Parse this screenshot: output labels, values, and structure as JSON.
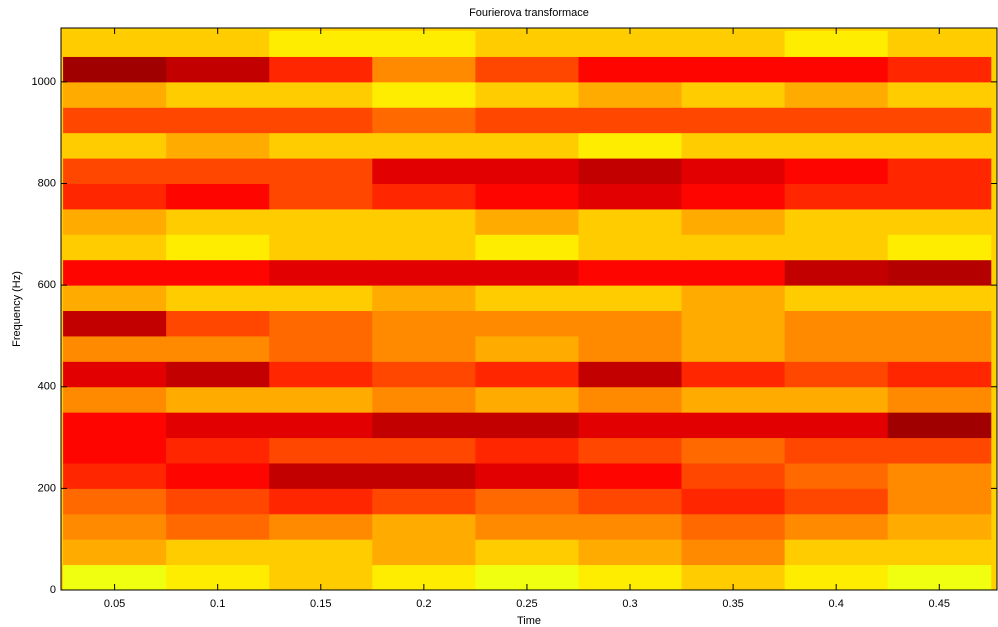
{
  "chart_data": {
    "type": "heatmap",
    "title": "Fourierova transformace",
    "xlabel": "Time",
    "ylabel": "Frequency (Hz)",
    "x": [
      0.05,
      0.1,
      0.15,
      0.2,
      0.25,
      0.3,
      0.35,
      0.4,
      0.45
    ],
    "y": [
      25,
      75,
      125,
      175,
      225,
      275,
      325,
      375,
      425,
      475,
      525,
      575,
      625,
      675,
      725,
      775,
      825,
      875,
      925,
      975,
      1025,
      1075
    ],
    "z": [
      [
        0.4,
        0.45,
        0.5,
        0.45,
        0.4,
        0.45,
        0.5,
        0.45,
        0.4
      ],
      [
        0.55,
        0.5,
        0.5,
        0.55,
        0.5,
        0.55,
        0.6,
        0.5,
        0.5
      ],
      [
        0.6,
        0.65,
        0.6,
        0.55,
        0.6,
        0.6,
        0.65,
        0.6,
        0.55
      ],
      [
        0.65,
        0.7,
        0.75,
        0.7,
        0.65,
        0.7,
        0.75,
        0.7,
        0.6
      ],
      [
        0.75,
        0.8,
        0.9,
        0.9,
        0.85,
        0.8,
        0.7,
        0.65,
        0.6
      ],
      [
        0.8,
        0.75,
        0.7,
        0.7,
        0.75,
        0.7,
        0.65,
        0.7,
        0.7
      ],
      [
        0.8,
        0.85,
        0.85,
        0.9,
        0.9,
        0.85,
        0.85,
        0.85,
        0.95
      ],
      [
        0.6,
        0.55,
        0.55,
        0.6,
        0.55,
        0.6,
        0.55,
        0.55,
        0.6
      ],
      [
        0.85,
        0.9,
        0.75,
        0.7,
        0.75,
        0.9,
        0.75,
        0.7,
        0.75
      ],
      [
        0.6,
        0.6,
        0.65,
        0.6,
        0.55,
        0.6,
        0.55,
        0.6,
        0.6
      ],
      [
        0.9,
        0.7,
        0.65,
        0.6,
        0.6,
        0.6,
        0.55,
        0.6,
        0.6
      ],
      [
        0.55,
        0.5,
        0.5,
        0.55,
        0.5,
        0.5,
        0.55,
        0.5,
        0.5
      ],
      [
        0.8,
        0.8,
        0.85,
        0.85,
        0.85,
        0.8,
        0.8,
        0.9,
        0.92
      ],
      [
        0.5,
        0.45,
        0.5,
        0.5,
        0.45,
        0.5,
        0.5,
        0.5,
        0.45
      ],
      [
        0.55,
        0.5,
        0.5,
        0.5,
        0.55,
        0.5,
        0.55,
        0.5,
        0.5
      ],
      [
        0.75,
        0.8,
        0.7,
        0.75,
        0.8,
        0.85,
        0.8,
        0.75,
        0.75
      ],
      [
        0.7,
        0.7,
        0.7,
        0.85,
        0.85,
        0.9,
        0.85,
        0.8,
        0.75
      ],
      [
        0.5,
        0.55,
        0.5,
        0.5,
        0.5,
        0.45,
        0.5,
        0.5,
        0.5
      ],
      [
        0.7,
        0.7,
        0.7,
        0.65,
        0.7,
        0.7,
        0.7,
        0.7,
        0.7
      ],
      [
        0.55,
        0.5,
        0.5,
        0.45,
        0.5,
        0.55,
        0.5,
        0.55,
        0.5
      ],
      [
        0.95,
        0.9,
        0.75,
        0.6,
        0.7,
        0.8,
        0.8,
        0.8,
        0.75
      ],
      [
        0.5,
        0.5,
        0.45,
        0.45,
        0.5,
        0.5,
        0.5,
        0.45,
        0.5
      ]
    ],
    "clim": [
      0,
      1
    ],
    "colormap": "jet",
    "xlim": [
      0.024,
      0.478
    ],
    "ylim": [
      0,
      1106
    ],
    "xticks": [
      0.05,
      0.1,
      0.15,
      0.2,
      0.25,
      0.3,
      0.35,
      0.4,
      0.45
    ],
    "yticks": [
      0,
      200,
      400,
      600,
      800,
      1000
    ]
  }
}
